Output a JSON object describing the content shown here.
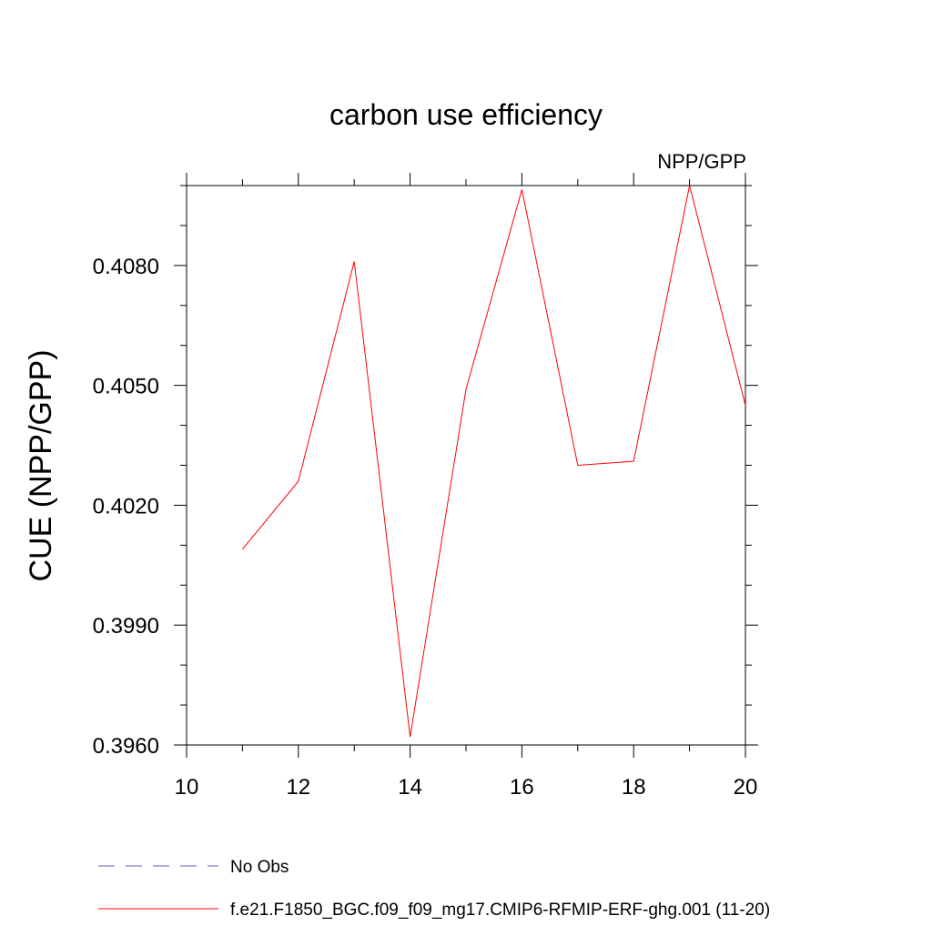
{
  "chart_data": {
    "type": "line",
    "title": "carbon use efficiency",
    "subtitle": "NPP/GPP",
    "ylabel": "CUE  (NPP/GPP)",
    "xlabel": "",
    "xlim": [
      10,
      20
    ],
    "ylim": [
      0.396,
      0.41
    ],
    "x_ticks": [
      10,
      12,
      14,
      16,
      18,
      20
    ],
    "x_tick_labels": [
      "10",
      "12",
      "14",
      "16",
      "18",
      "20"
    ],
    "x_minor_ticks": [
      10,
      11,
      12,
      13,
      14,
      15,
      16,
      17,
      18,
      19,
      20
    ],
    "y_ticks": [
      0.396,
      0.399,
      0.402,
      0.405,
      0.408
    ],
    "y_tick_labels": [
      "0.3960",
      "0.3990",
      "0.4020",
      "0.4050",
      "0.4080"
    ],
    "y_minor_step": 0.001,
    "grid": false,
    "legend_position": "bottom",
    "series": [
      {
        "name": "No Obs",
        "color": "#6a5acd",
        "dash": "dashed",
        "x": [],
        "y": []
      },
      {
        "name": "f.e21.F1850_BGC.f09_f09_mg17.CMIP6-RFMIP-ERF-ghg.001 (11-20)",
        "color": "#ff0000",
        "dash": "solid",
        "x": [
          11,
          12,
          13,
          14,
          15,
          16,
          17,
          18,
          19,
          20
        ],
        "y": [
          0.4009,
          0.4026,
          0.4081,
          0.3962,
          0.4049,
          0.4099,
          0.403,
          0.4031,
          0.41,
          0.4045
        ]
      }
    ]
  }
}
